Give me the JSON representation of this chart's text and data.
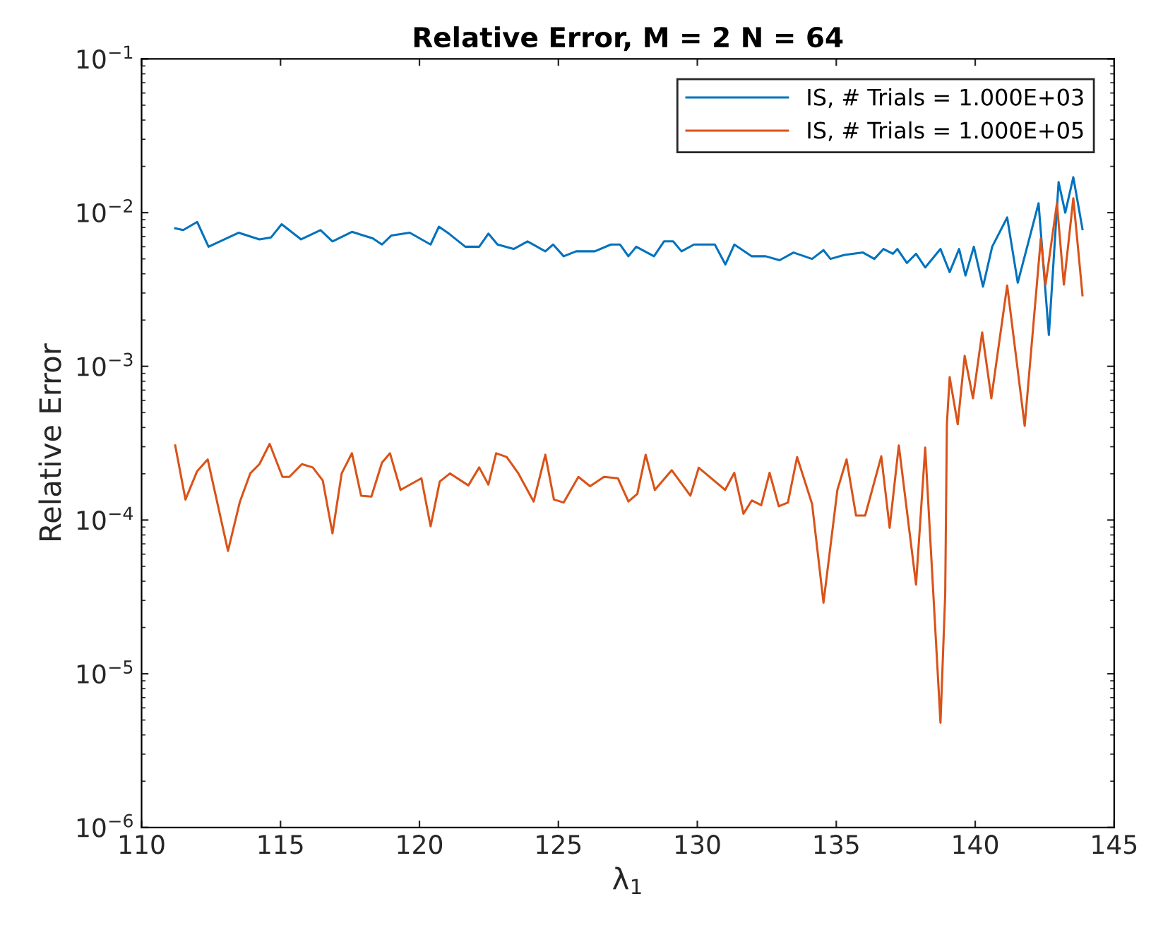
{
  "chart_data": {
    "type": "line",
    "title": "Relative Error, M = 2 N = 64",
    "xlabel": "λ$_{1}$",
    "ylabel": "Relative Error",
    "log": "y",
    "xlim": [
      110,
      145
    ],
    "xticks": [
      110,
      115,
      120,
      125,
      130,
      135,
      140,
      145
    ],
    "ylim": [
      1e-06,
      0.1
    ],
    "yticks": [
      {
        "value": 1e-06,
        "label": "10$^{−6}$"
      },
      {
        "value": 1e-05,
        "label": "10$^{−5}$"
      },
      {
        "value": 0.0001,
        "label": "10$^{−4}$"
      },
      {
        "value": 0.001,
        "label": "10$^{−3}$"
      },
      {
        "value": 0.01,
        "label": "10$^{−2}$"
      },
      {
        "value": 0.1,
        "label": "10$^{−1}$"
      }
    ],
    "grid": false,
    "legend": "top right",
    "marker": "none",
    "line_style": "solid",
    "series": [
      {
        "name": "IS, # Trials = 1.000E+03",
        "color": "#0072bd",
        "x": [
          111.21,
          111.5,
          112.0,
          112.41,
          113.49,
          114.24,
          114.66,
          115.04,
          115.74,
          116.44,
          116.87,
          117.57,
          118.32,
          118.65,
          118.99,
          119.65,
          120.4,
          120.7,
          121.06,
          121.65,
          122.15,
          122.48,
          122.81,
          123.39,
          123.89,
          124.53,
          124.81,
          125.19,
          125.64,
          126.31,
          126.89,
          127.22,
          127.52,
          127.8,
          128.44,
          128.8,
          129.13,
          129.43,
          129.88,
          130.63,
          131.01,
          131.33,
          131.96,
          132.46,
          132.96,
          133.46,
          134.13,
          134.54,
          134.79,
          135.29,
          135.96,
          136.37,
          136.7,
          137.04,
          137.2,
          137.54,
          137.87,
          138.2,
          138.75,
          139.08,
          139.42,
          139.65,
          139.95,
          140.28,
          140.61,
          141.15,
          141.53,
          142.28,
          142.65,
          143.0,
          143.24,
          143.53,
          143.86
        ],
        "values": [
          0.0079,
          0.0077,
          0.0087,
          0.006,
          0.0074,
          0.0067,
          0.0069,
          0.0084,
          0.0067,
          0.0077,
          0.0065,
          0.0075,
          0.0068,
          0.0062,
          0.0071,
          0.0074,
          0.0062,
          0.0081,
          0.0073,
          0.006,
          0.006,
          0.0073,
          0.0062,
          0.0058,
          0.0065,
          0.0056,
          0.0062,
          0.0052,
          0.0056,
          0.0056,
          0.0062,
          0.0062,
          0.0052,
          0.006,
          0.0052,
          0.0065,
          0.0065,
          0.0056,
          0.0062,
          0.0062,
          0.0046,
          0.0062,
          0.0052,
          0.0052,
          0.0049,
          0.0055,
          0.005,
          0.0057,
          0.005,
          0.0053,
          0.0055,
          0.005,
          0.0058,
          0.0054,
          0.0058,
          0.0047,
          0.0054,
          0.0044,
          0.0058,
          0.0041,
          0.0058,
          0.0039,
          0.006,
          0.0033,
          0.006,
          0.0093,
          0.0035,
          0.0115,
          0.0016,
          0.0158,
          0.01,
          0.017,
          0.0078
        ]
      },
      {
        "name": "IS, # Trials = 1.000E+05",
        "color": "#d95319",
        "x": [
          111.21,
          111.58,
          112.0,
          112.38,
          113.11,
          113.54,
          113.91,
          114.24,
          114.61,
          115.07,
          115.32,
          115.77,
          116.16,
          116.52,
          116.87,
          117.2,
          117.57,
          117.9,
          118.27,
          118.65,
          118.94,
          119.32,
          120.07,
          120.4,
          120.73,
          121.1,
          121.76,
          122.15,
          122.48,
          122.76,
          123.14,
          123.56,
          124.11,
          124.53,
          124.84,
          125.19,
          125.72,
          126.14,
          126.64,
          127.14,
          127.52,
          127.84,
          128.14,
          128.47,
          129.08,
          129.75,
          130.05,
          131.0,
          131.33,
          131.66,
          131.96,
          132.3,
          132.6,
          132.93,
          133.26,
          133.59,
          134.13,
          134.54,
          135.04,
          135.37,
          135.71,
          136.04,
          136.62,
          136.92,
          137.25,
          137.87,
          138.2,
          138.75,
          138.92,
          138.98,
          139.08,
          139.37,
          139.62,
          139.92,
          140.25,
          140.58,
          141.15,
          141.78,
          142.36,
          142.53,
          142.94,
          143.19,
          143.53,
          143.86
        ],
        "values": [
          0.000306,
          0.000136,
          0.000208,
          0.000248,
          6.3e-05,
          0.000132,
          0.000201,
          0.000231,
          0.000313,
          0.000191,
          0.000191,
          0.000231,
          0.00022,
          0.000181,
          8.2e-05,
          0.000201,
          0.000272,
          0.000144,
          0.000142,
          0.000236,
          0.000272,
          0.000157,
          0.000187,
          9.1e-05,
          0.000178,
          0.000201,
          0.000168,
          0.00022,
          0.00017,
          0.000272,
          0.000257,
          0.000201,
          0.000132,
          0.000266,
          0.000136,
          0.00013,
          0.000191,
          0.000166,
          0.000191,
          0.000187,
          0.000132,
          0.000148,
          0.000266,
          0.000157,
          0.000211,
          0.000144,
          0.000219,
          0.000157,
          0.000203,
          0.00011,
          0.000134,
          0.000125,
          0.000203,
          0.000123,
          0.00013,
          0.000257,
          0.000127,
          2.9e-05,
          0.000157,
          0.000248,
          0.000107,
          0.000107,
          0.00026,
          8.9e-05,
          0.000306,
          3.8e-05,
          0.000296,
          4.8e-06,
          3.3e-05,
          0.00042,
          0.00085,
          0.00042,
          0.00117,
          0.00062,
          0.00166,
          0.00062,
          0.00336,
          0.00041,
          0.0068,
          0.0034,
          0.0115,
          0.0034,
          0.0124,
          0.0029
        ]
      }
    ]
  }
}
